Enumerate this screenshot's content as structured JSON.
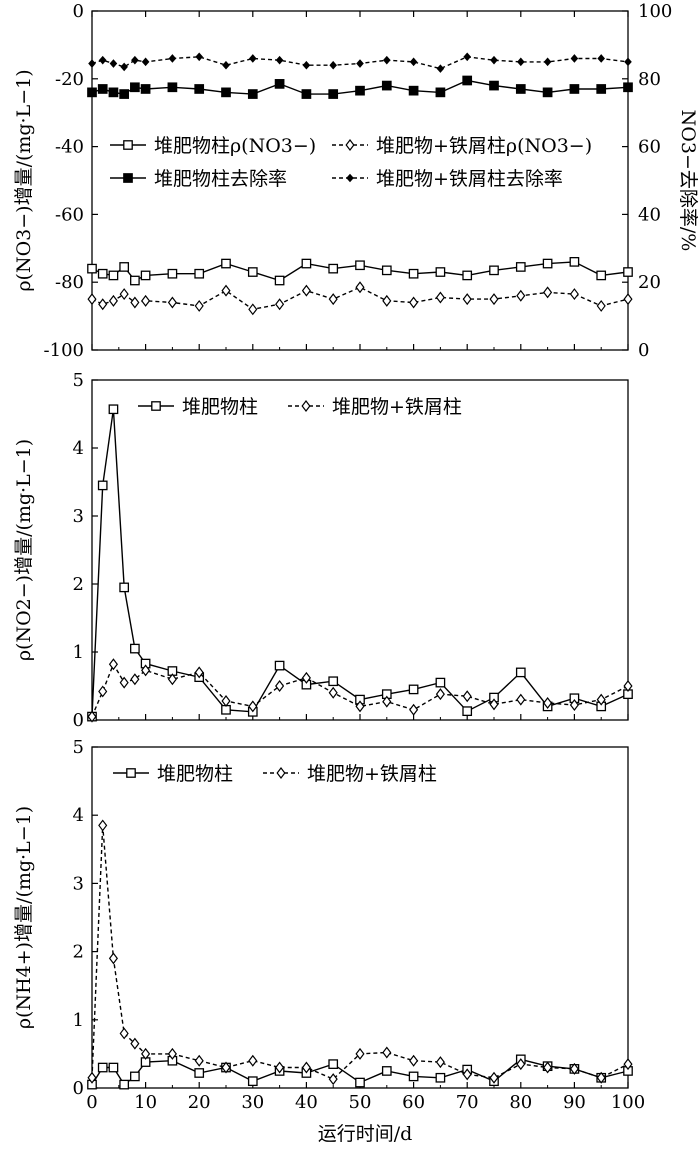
{
  "chart_data": [
    {
      "type": "line",
      "ylabel": "ρ(NO3−)增量/(mg·L−1)",
      "y2label": "NO3−去除率/%",
      "xlim": [
        0,
        100
      ],
      "ylim": [
        -100,
        0
      ],
      "y2lim": [
        0,
        100
      ],
      "xticks": [
        "0",
        "10",
        "20",
        "30",
        "40",
        "50",
        "60",
        "70",
        "80",
        "90",
        "100"
      ],
      "yticks": [
        "0",
        "-20",
        "-40",
        "-60",
        "-80",
        "-100"
      ],
      "y2ticks": [
        "100",
        "80",
        "60",
        "40",
        "20",
        "0"
      ],
      "legend_position": "top-left",
      "series": [
        {
          "name": "堆肥物柱ρ(NO3−)",
          "axis": "left",
          "marker": "open-square",
          "line": "solid",
          "x": [
            0,
            2,
            4,
            6,
            8,
            10,
            15,
            20,
            25,
            30,
            35,
            40,
            45,
            50,
            55,
            60,
            65,
            70,
            75,
            80,
            85,
            90,
            95,
            100
          ],
          "y": [
            -76,
            -77.5,
            -78,
            -75.5,
            -79.5,
            -78,
            -77.5,
            -77.5,
            -74.5,
            -77,
            -79.5,
            -74.5,
            -76,
            -75,
            -76.5,
            -77.5,
            -77,
            -78,
            -76.5,
            -75.5,
            -74.5,
            -74,
            -78,
            -77
          ]
        },
        {
          "name": "堆肥物+铁屑柱ρ(NO3−)",
          "axis": "left",
          "marker": "open-diamond",
          "line": "dashed",
          "x": [
            0,
            2,
            4,
            6,
            8,
            10,
            15,
            20,
            25,
            30,
            35,
            40,
            45,
            50,
            55,
            60,
            65,
            70,
            75,
            80,
            85,
            90,
            95,
            100
          ],
          "y": [
            -85,
            -86.5,
            -85.5,
            -83.5,
            -86,
            -85.5,
            -86,
            -87,
            -82.5,
            -88,
            -86.5,
            -82.5,
            -85,
            -81.5,
            -85.5,
            -86,
            -84.5,
            -85,
            -85,
            -84,
            -83,
            -83.5,
            -87,
            -85
          ]
        },
        {
          "name": "堆肥物柱去除率",
          "axis": "right",
          "marker": "filled-square",
          "line": "solid",
          "x": [
            0,
            2,
            4,
            6,
            8,
            10,
            15,
            20,
            25,
            30,
            35,
            40,
            45,
            50,
            55,
            60,
            65,
            70,
            75,
            80,
            85,
            90,
            95,
            100
          ],
          "y": [
            76,
            77,
            76,
            75.5,
            77.5,
            77,
            77.5,
            77,
            76,
            75.5,
            78.5,
            75.5,
            75.5,
            76.5,
            78,
            76.5,
            76,
            79.5,
            78,
            77,
            76,
            77,
            77,
            77.5
          ]
        },
        {
          "name": "堆肥物+铁屑柱去除率",
          "axis": "right",
          "marker": "filled-diamond",
          "line": "dashed",
          "x": [
            0,
            2,
            4,
            6,
            8,
            10,
            15,
            20,
            25,
            30,
            35,
            40,
            45,
            50,
            55,
            60,
            65,
            70,
            75,
            80,
            85,
            90,
            95,
            100
          ],
          "y": [
            84.5,
            85.5,
            84.5,
            83.5,
            85.5,
            85,
            86,
            86.5,
            84,
            86,
            85.5,
            84,
            84,
            84.5,
            85.5,
            85,
            83,
            86.5,
            85.5,
            85,
            85,
            86,
            86,
            85
          ]
        }
      ]
    },
    {
      "type": "line",
      "ylabel": "ρ(NO2−)增量/(mg·L−1)",
      "xlim": [
        0,
        100
      ],
      "ylim": [
        0,
        5
      ],
      "xticks": [
        "0",
        "10",
        "20",
        "30",
        "40",
        "50",
        "60",
        "70",
        "80",
        "90",
        "100"
      ],
      "yticks": [
        "5",
        "4",
        "3",
        "2",
        "1",
        "0"
      ],
      "legend_position": "top-center",
      "series": [
        {
          "name": "堆肥物柱",
          "marker": "open-square",
          "line": "solid",
          "x": [
            0,
            2,
            4,
            6,
            8,
            10,
            15,
            20,
            25,
            30,
            35,
            40,
            45,
            50,
            55,
            60,
            65,
            70,
            75,
            80,
            85,
            90,
            95,
            100
          ],
          "y": [
            0.05,
            3.45,
            4.57,
            1.95,
            1.05,
            0.83,
            0.72,
            0.63,
            0.15,
            0.12,
            0.8,
            0.52,
            0.57,
            0.3,
            0.38,
            0.45,
            0.55,
            0.13,
            0.33,
            0.7,
            0.2,
            0.32,
            0.2,
            0.38
          ]
        },
        {
          "name": "堆肥物+铁屑柱",
          "marker": "open-diamond",
          "line": "dashed",
          "x": [
            0,
            2,
            4,
            6,
            8,
            10,
            15,
            20,
            25,
            30,
            35,
            40,
            45,
            50,
            55,
            60,
            65,
            70,
            75,
            80,
            85,
            90,
            95,
            100
          ],
          "y": [
            0.05,
            0.42,
            0.82,
            0.55,
            0.6,
            0.73,
            0.6,
            0.7,
            0.28,
            0.2,
            0.5,
            0.62,
            0.4,
            0.2,
            0.27,
            0.15,
            0.38,
            0.35,
            0.23,
            0.3,
            0.25,
            0.22,
            0.3,
            0.5
          ]
        }
      ]
    },
    {
      "type": "line",
      "ylabel": "ρ(NH4+)增量/(mg·L−1)",
      "xlabel": "运行时间/d",
      "xlim": [
        0,
        100
      ],
      "ylim": [
        0,
        5
      ],
      "xticks": [
        "0",
        "10",
        "20",
        "30",
        "40",
        "50",
        "60",
        "70",
        "80",
        "90",
        "100"
      ],
      "yticks": [
        "5",
        "4",
        "3",
        "2",
        "1",
        "0"
      ],
      "legend_position": "top-center",
      "series": [
        {
          "name": "堆肥物柱",
          "marker": "open-square",
          "line": "solid",
          "x": [
            0,
            2,
            4,
            6,
            8,
            10,
            15,
            20,
            25,
            30,
            35,
            40,
            45,
            50,
            55,
            60,
            65,
            70,
            75,
            80,
            85,
            90,
            95,
            100
          ],
          "y": [
            0.05,
            0.3,
            0.3,
            0.05,
            0.17,
            0.38,
            0.4,
            0.22,
            0.3,
            0.1,
            0.25,
            0.22,
            0.35,
            0.08,
            0.25,
            0.17,
            0.15,
            0.27,
            0.1,
            0.42,
            0.32,
            0.28,
            0.15,
            0.25
          ]
        },
        {
          "name": "堆肥物+铁屑柱",
          "marker": "open-diamond",
          "line": "dashed",
          "x": [
            0,
            2,
            4,
            6,
            8,
            10,
            15,
            20,
            25,
            30,
            35,
            40,
            45,
            50,
            55,
            60,
            65,
            70,
            75,
            80,
            85,
            90,
            95,
            100
          ],
          "y": [
            0.15,
            3.85,
            1.9,
            0.8,
            0.65,
            0.5,
            0.5,
            0.4,
            0.3,
            0.4,
            0.3,
            0.3,
            0.13,
            0.5,
            0.52,
            0.4,
            0.38,
            0.2,
            0.15,
            0.35,
            0.3,
            0.28,
            0.15,
            0.35
          ]
        }
      ]
    }
  ]
}
